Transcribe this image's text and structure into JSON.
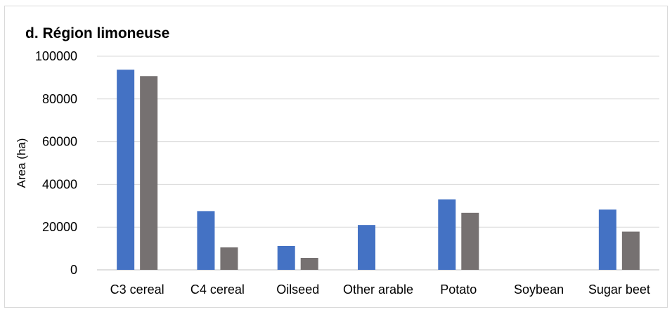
{
  "chart_data": {
    "type": "bar",
    "title": "d. Région limoneuse",
    "xlabel": "",
    "ylabel": "Area (ha)",
    "ylim": [
      0,
      100000
    ],
    "yticks": [
      0,
      20000,
      40000,
      60000,
      80000,
      100000
    ],
    "ytick_labels": [
      "0",
      "20000",
      "40000",
      "60000",
      "80000",
      "100000"
    ],
    "grid": true,
    "legend": "none",
    "categories": [
      "C3 cereal",
      "C4 cereal",
      "Oilseed",
      "Other arable",
      "Potato",
      "Soybean",
      "Sugar beet"
    ],
    "series": [
      {
        "color": "#4472c4",
        "values": [
          93700,
          27500,
          11200,
          21000,
          33000,
          0,
          28200
        ]
      },
      {
        "color": "#767171",
        "values": [
          90700,
          10500,
          5600,
          0,
          26700,
          0,
          17900
        ]
      }
    ]
  }
}
